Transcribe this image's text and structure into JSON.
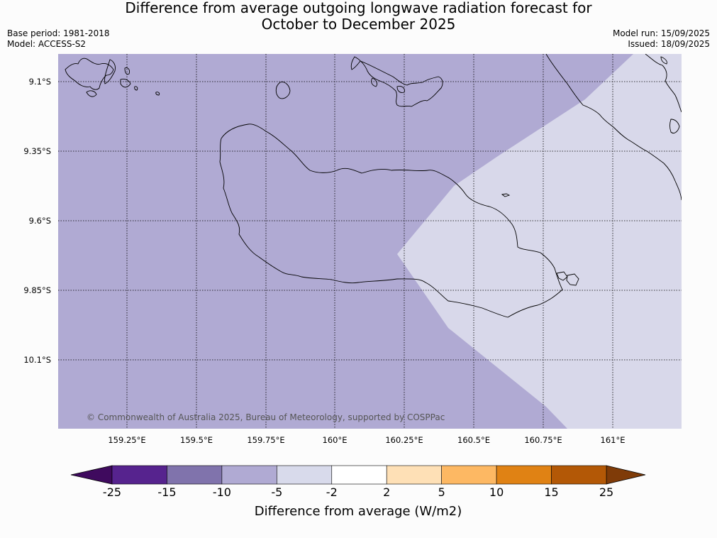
{
  "header": {
    "title_line1": "Difference from average outgoing longwave radiation forecast for",
    "title_line2": "October to December 2025",
    "base_period": "Base period: 1981-2018",
    "model": "Model: ACCESS-S2",
    "model_run": "Model run: 15/09/2025",
    "issued": "Issued: 18/09/2025"
  },
  "map": {
    "copyright": "© Commonwealth of Australia 2025, Bureau of Meteorology, supported by COSPPac",
    "lat_ticks": [
      "9.1°S",
      "9.35°S",
      "9.6°S",
      "9.85°S",
      "10.1°S"
    ],
    "lon_ticks": [
      "159.25°E",
      "159.5°E",
      "159.75°E",
      "160°E",
      "160.25°E",
      "160.5°E",
      "160.75°E",
      "161°E"
    ],
    "zones": [
      {
        "category": "-10 to -5",
        "color": "#b0aad3"
      },
      {
        "category": "-5 to -2",
        "color": "#d8d8ea"
      }
    ]
  },
  "colorbar": {
    "label": "Difference from average (W/m2)",
    "ticks": [
      "-25",
      "-15",
      "-10",
      "-5",
      "-2",
      "2",
      "5",
      "10",
      "15",
      "25"
    ],
    "extend_low_color": "#3f0a5e",
    "extend_high_color": "#7f3b08",
    "colors": [
      "#56238e",
      "#8073ac",
      "#b0aad3",
      "#d8daeb",
      "#ffffff",
      "#fee0b6",
      "#fdb863",
      "#e08214",
      "#b35806"
    ]
  }
}
